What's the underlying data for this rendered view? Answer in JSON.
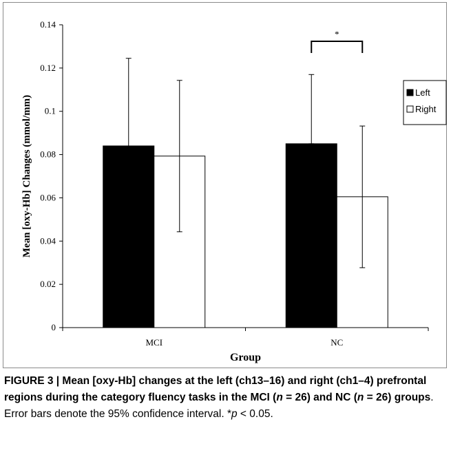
{
  "chart_data": {
    "type": "bar",
    "categories": [
      "MCI",
      "NC"
    ],
    "series": [
      {
        "name": "Left",
        "values": [
          0.084,
          0.085
        ],
        "ci_upper": [
          0.1245,
          0.117
        ],
        "ci_lower": [
          0.084,
          0.085
        ],
        "color": "#000000"
      },
      {
        "name": "Right",
        "values": [
          0.0793,
          0.0605
        ],
        "ci_upper": [
          0.1143,
          0.0932
        ],
        "ci_lower": [
          0.0443,
          0.0277
        ],
        "color": "#ffffff"
      }
    ],
    "xlabel": "Group",
    "ylabel": "Mean [oxy-Hb] Changes (mmol/mm)",
    "ylim": [
      0,
      0.14
    ],
    "yticks": [
      "0",
      "0.02",
      "0.04",
      "0.06",
      "0.08",
      "0.1",
      "0.12",
      "0.14"
    ],
    "grid": false,
    "legend_position": "right",
    "annotation": {
      "text": "*",
      "between": "NC Left vs NC Right"
    }
  },
  "caption": {
    "title": "FIGURE 3 | Mean [oxy-Hb] changes at the left (ch13–16) and right (ch1–4) prefrontal regions during the category fluency tasks in the MCI (",
    "n1_var": "n",
    "n1_rest": " = 26) and NC (",
    "n2_var": "n",
    "n2_rest": " = 26) groups",
    "body": ". Error bars denote the 95% confidence interval. *",
    "p_var": "p",
    "p_rest": " < 0.05."
  }
}
